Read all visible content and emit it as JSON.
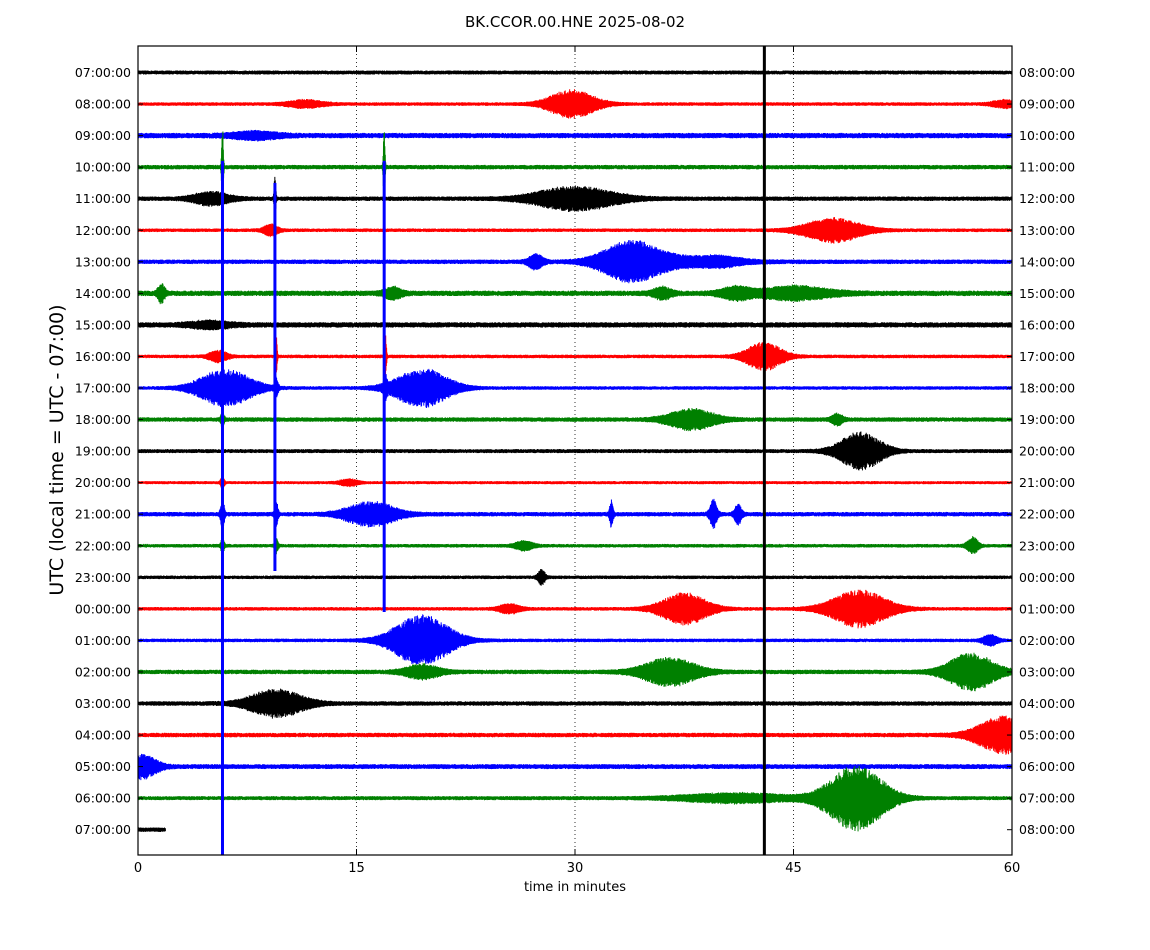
{
  "chart_data": {
    "type": "line",
    "title": "BK.CCOR.00.HNE 2025-08-02",
    "xlabel": "time in minutes",
    "ylabel": "UTC (local time = UTC - 07:00)",
    "xlim": [
      0,
      60
    ],
    "x_ticks": [
      0,
      15,
      30,
      45,
      60
    ],
    "x_tick_labels": [
      "0",
      "15",
      "30",
      "45",
      "60"
    ],
    "grid": "vertical dotted at 15, 30, 45",
    "legend": "none",
    "row_colors": [
      "#000000",
      "#ff0000",
      "#0000ff",
      "#008000"
    ],
    "left_labels": [
      "07:00:00",
      "08:00:00",
      "09:00:00",
      "10:00:00",
      "11:00:00",
      "12:00:00",
      "13:00:00",
      "14:00:00",
      "15:00:00",
      "16:00:00",
      "17:00:00",
      "18:00:00",
      "19:00:00",
      "20:00:00",
      "21:00:00",
      "22:00:00",
      "23:00:00",
      "00:00:00",
      "01:00:00",
      "02:00:00",
      "03:00:00",
      "04:00:00",
      "05:00:00",
      "06:00:00",
      "07:00:00"
    ],
    "right_labels": [
      "08:00:00",
      "09:00:00",
      "10:00:00",
      "11:00:00",
      "12:00:00",
      "13:00:00",
      "14:00:00",
      "15:00:00",
      "16:00:00",
      "17:00:00",
      "18:00:00",
      "19:00:00",
      "20:00:00",
      "21:00:00",
      "22:00:00",
      "23:00:00",
      "00:00:00",
      "01:00:00",
      "02:00:00",
      "03:00:00",
      "04:00:00",
      "05:00:00",
      "06:00:00",
      "07:00:00",
      "08:00:00"
    ],
    "rows": [
      {
        "noise": 0.45,
        "end": 60,
        "events": []
      },
      {
        "noise": 0.4,
        "end": 60,
        "events": [
          {
            "t": 29.8,
            "amp": 3.0,
            "w": 1.3
          },
          {
            "t": 11.5,
            "amp": 0.8,
            "w": 1.0
          },
          {
            "t": 59.5,
            "amp": 0.8,
            "w": 0.7
          }
        ]
      },
      {
        "noise": 0.6,
        "end": 60,
        "events": [
          {
            "t": 8.0,
            "amp": 0.8,
            "w": 1.3
          }
        ]
      },
      {
        "noise": 0.5,
        "end": 60,
        "events": [
          {
            "t": 5.8,
            "amp": 9.5,
            "w": 0.05
          },
          {
            "t": 16.9,
            "amp": 9.0,
            "w": 0.05
          }
        ]
      },
      {
        "noise": 0.5,
        "end": 60,
        "events": [
          {
            "t": 30.0,
            "amp": 2.6,
            "w": 2.2
          },
          {
            "t": 5.0,
            "amp": 1.4,
            "w": 1.0
          },
          {
            "t": 9.4,
            "amp": 5.0,
            "w": 0.05
          }
        ]
      },
      {
        "noise": 0.4,
        "end": 60,
        "events": [
          {
            "t": 47.7,
            "amp": 2.6,
            "w": 1.6
          },
          {
            "t": 9.1,
            "amp": 1.2,
            "w": 0.4
          }
        ]
      },
      {
        "noise": 0.5,
        "end": 60,
        "events": [
          {
            "t": 33.8,
            "amp": 4.0,
            "w": 1.6
          },
          {
            "t": 27.3,
            "amp": 1.6,
            "w": 0.4
          },
          {
            "t": 37.0,
            "amp": 1.0,
            "w": 3.0
          },
          {
            "t": 40.0,
            "amp": 0.7,
            "w": 1.0
          }
        ]
      },
      {
        "noise": 0.6,
        "end": 60,
        "events": [
          {
            "t": 1.6,
            "amp": 2.0,
            "w": 0.2
          },
          {
            "t": 17.5,
            "amp": 1.2,
            "w": 0.5
          },
          {
            "t": 36.0,
            "amp": 1.2,
            "w": 0.5
          },
          {
            "t": 41.0,
            "amp": 1.2,
            "w": 0.8
          },
          {
            "t": 45.0,
            "amp": 1.4,
            "w": 2.0
          }
        ]
      },
      {
        "noise": 0.6,
        "end": 60,
        "events": [
          {
            "t": 5.0,
            "amp": 0.7,
            "w": 1.2
          }
        ]
      },
      {
        "noise": 0.4,
        "end": 60,
        "events": [
          {
            "t": 43.0,
            "amp": 3.0,
            "w": 1.0
          },
          {
            "t": 5.5,
            "amp": 1.2,
            "w": 0.5
          },
          {
            "t": 9.5,
            "amp": 4.0,
            "w": 0.05
          },
          {
            "t": 17.0,
            "amp": 5.0,
            "w": 0.05
          }
        ]
      },
      {
        "noise": 0.4,
        "end": 60,
        "events": [
          {
            "t": 6.0,
            "amp": 4.0,
            "w": 1.5
          },
          {
            "t": 19.5,
            "amp": 4.2,
            "w": 1.5
          },
          {
            "t": 9.5,
            "amp": 2.0,
            "w": 0.1
          },
          {
            "t": 17.0,
            "amp": 2.0,
            "w": 0.1
          }
        ]
      },
      {
        "noise": 0.5,
        "end": 60,
        "events": [
          {
            "t": 38.0,
            "amp": 2.2,
            "w": 1.3
          },
          {
            "t": 48.0,
            "amp": 1.2,
            "w": 0.3
          },
          {
            "t": 5.8,
            "amp": 1.5,
            "w": 0.1
          }
        ]
      },
      {
        "noise": 0.45,
        "end": 60,
        "events": [
          {
            "t": 49.6,
            "amp": 4.0,
            "w": 1.2
          }
        ]
      },
      {
        "noise": 0.35,
        "end": 60,
        "events": [
          {
            "t": 14.5,
            "amp": 0.7,
            "w": 0.5
          },
          {
            "t": 5.8,
            "amp": 1.5,
            "w": 0.1
          }
        ]
      },
      {
        "noise": 0.5,
        "end": 60,
        "events": [
          {
            "t": 16.0,
            "amp": 2.6,
            "w": 1.4
          },
          {
            "t": 5.8,
            "amp": 3.5,
            "w": 0.1
          },
          {
            "t": 9.5,
            "amp": 2.5,
            "w": 0.1
          },
          {
            "t": 32.5,
            "amp": 2.8,
            "w": 0.1
          },
          {
            "t": 39.5,
            "amp": 3.0,
            "w": 0.2
          },
          {
            "t": 41.2,
            "amp": 2.2,
            "w": 0.2
          }
        ]
      },
      {
        "noise": 0.4,
        "end": 60,
        "events": [
          {
            "t": 26.5,
            "amp": 1.0,
            "w": 0.5
          },
          {
            "t": 57.3,
            "amp": 1.8,
            "w": 0.3
          },
          {
            "t": 5.8,
            "amp": 1.5,
            "w": 0.1
          },
          {
            "t": 9.5,
            "amp": 1.5,
            "w": 0.1
          }
        ]
      },
      {
        "noise": 0.4,
        "end": 60,
        "events": [
          {
            "t": 27.7,
            "amp": 1.6,
            "w": 0.2
          }
        ]
      },
      {
        "noise": 0.4,
        "end": 60,
        "events": [
          {
            "t": 37.5,
            "amp": 3.4,
            "w": 1.3
          },
          {
            "t": 49.5,
            "amp": 4.0,
            "w": 1.6
          },
          {
            "t": 25.5,
            "amp": 1.0,
            "w": 0.6
          }
        ]
      },
      {
        "noise": 0.4,
        "end": 60,
        "events": [
          {
            "t": 19.5,
            "amp": 5.5,
            "w": 1.6
          },
          {
            "t": 58.5,
            "amp": 1.2,
            "w": 0.4
          }
        ]
      },
      {
        "noise": 0.5,
        "end": 60,
        "events": [
          {
            "t": 36.5,
            "amp": 3.0,
            "w": 1.5
          },
          {
            "t": 57.2,
            "amp": 4.0,
            "w": 1.3
          },
          {
            "t": 19.5,
            "amp": 1.5,
            "w": 1.0
          }
        ]
      },
      {
        "noise": 0.5,
        "end": 60,
        "events": [
          {
            "t": 9.5,
            "amp": 3.0,
            "w": 1.5
          }
        ]
      },
      {
        "noise": 0.5,
        "end": 60,
        "events": [
          {
            "t": 59.5,
            "amp": 4.0,
            "w": 1.5
          }
        ]
      },
      {
        "noise": 0.55,
        "end": 60,
        "events": [
          {
            "t": 0.3,
            "amp": 2.5,
            "w": 0.8
          }
        ]
      },
      {
        "noise": 0.45,
        "end": 60,
        "events": [
          {
            "t": 49.3,
            "amp": 7.0,
            "w": 1.6
          },
          {
            "t": 41.0,
            "amp": 1.0,
            "w": 3.0
          }
        ]
      },
      {
        "noise": 0.5,
        "end": 1.9,
        "events": []
      }
    ],
    "spikes": [
      {
        "t": 5.8,
        "top_row": 2.8,
        "bottom_row": 24.9,
        "color": "#0000ff",
        "width": 3
      },
      {
        "t": 9.4,
        "top_row": 3.5,
        "bottom_row": 15.8,
        "color": "#0000ff",
        "width": 3
      },
      {
        "t": 16.9,
        "top_row": 2.8,
        "bottom_row": 17.1,
        "color": "#0000ff",
        "width": 3
      },
      {
        "t": 43.0,
        "top_row": -1.0,
        "bottom_row": 25.0,
        "color": "#000000",
        "width": 3
      }
    ]
  }
}
